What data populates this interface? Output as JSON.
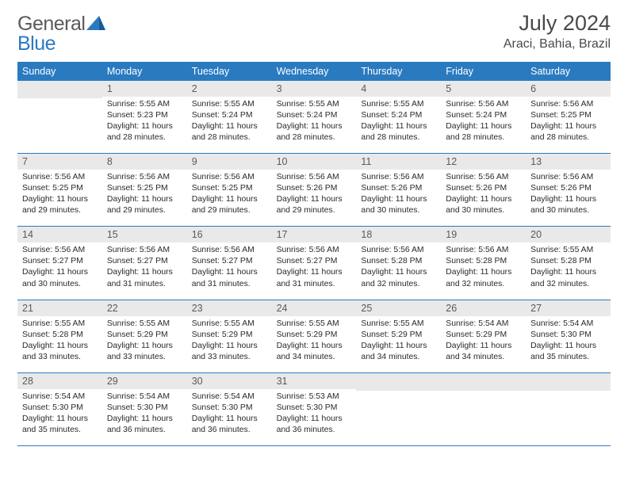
{
  "logo": {
    "word1": "General",
    "word2": "Blue"
  },
  "title": "July 2024",
  "location": "Araci, Bahia, Brazil",
  "weekdays": [
    "Sunday",
    "Monday",
    "Tuesday",
    "Wednesday",
    "Thursday",
    "Friday",
    "Saturday"
  ],
  "colors": {
    "header_bg": "#2a7ac0",
    "header_text": "#ffffff",
    "daynum_bg": "#e9e9e9",
    "daynum_text": "#5a5a5a",
    "body_text": "#262626",
    "logo_gray": "#5a5a5a",
    "logo_blue": "#2a7ac0",
    "row_divider": "#2a7ac0"
  },
  "weeks": [
    [
      {
        "n": "",
        "sr": "",
        "ss": "",
        "dl": ""
      },
      {
        "n": "1",
        "sr": "Sunrise: 5:55 AM",
        "ss": "Sunset: 5:23 PM",
        "dl": "Daylight: 11 hours and 28 minutes."
      },
      {
        "n": "2",
        "sr": "Sunrise: 5:55 AM",
        "ss": "Sunset: 5:24 PM",
        "dl": "Daylight: 11 hours and 28 minutes."
      },
      {
        "n": "3",
        "sr": "Sunrise: 5:55 AM",
        "ss": "Sunset: 5:24 PM",
        "dl": "Daylight: 11 hours and 28 minutes."
      },
      {
        "n": "4",
        "sr": "Sunrise: 5:55 AM",
        "ss": "Sunset: 5:24 PM",
        "dl": "Daylight: 11 hours and 28 minutes."
      },
      {
        "n": "5",
        "sr": "Sunrise: 5:56 AM",
        "ss": "Sunset: 5:24 PM",
        "dl": "Daylight: 11 hours and 28 minutes."
      },
      {
        "n": "6",
        "sr": "Sunrise: 5:56 AM",
        "ss": "Sunset: 5:25 PM",
        "dl": "Daylight: 11 hours and 28 minutes."
      }
    ],
    [
      {
        "n": "7",
        "sr": "Sunrise: 5:56 AM",
        "ss": "Sunset: 5:25 PM",
        "dl": "Daylight: 11 hours and 29 minutes."
      },
      {
        "n": "8",
        "sr": "Sunrise: 5:56 AM",
        "ss": "Sunset: 5:25 PM",
        "dl": "Daylight: 11 hours and 29 minutes."
      },
      {
        "n": "9",
        "sr": "Sunrise: 5:56 AM",
        "ss": "Sunset: 5:25 PM",
        "dl": "Daylight: 11 hours and 29 minutes."
      },
      {
        "n": "10",
        "sr": "Sunrise: 5:56 AM",
        "ss": "Sunset: 5:26 PM",
        "dl": "Daylight: 11 hours and 29 minutes."
      },
      {
        "n": "11",
        "sr": "Sunrise: 5:56 AM",
        "ss": "Sunset: 5:26 PM",
        "dl": "Daylight: 11 hours and 30 minutes."
      },
      {
        "n": "12",
        "sr": "Sunrise: 5:56 AM",
        "ss": "Sunset: 5:26 PM",
        "dl": "Daylight: 11 hours and 30 minutes."
      },
      {
        "n": "13",
        "sr": "Sunrise: 5:56 AM",
        "ss": "Sunset: 5:26 PM",
        "dl": "Daylight: 11 hours and 30 minutes."
      }
    ],
    [
      {
        "n": "14",
        "sr": "Sunrise: 5:56 AM",
        "ss": "Sunset: 5:27 PM",
        "dl": "Daylight: 11 hours and 30 minutes."
      },
      {
        "n": "15",
        "sr": "Sunrise: 5:56 AM",
        "ss": "Sunset: 5:27 PM",
        "dl": "Daylight: 11 hours and 31 minutes."
      },
      {
        "n": "16",
        "sr": "Sunrise: 5:56 AM",
        "ss": "Sunset: 5:27 PM",
        "dl": "Daylight: 11 hours and 31 minutes."
      },
      {
        "n": "17",
        "sr": "Sunrise: 5:56 AM",
        "ss": "Sunset: 5:27 PM",
        "dl": "Daylight: 11 hours and 31 minutes."
      },
      {
        "n": "18",
        "sr": "Sunrise: 5:56 AM",
        "ss": "Sunset: 5:28 PM",
        "dl": "Daylight: 11 hours and 32 minutes."
      },
      {
        "n": "19",
        "sr": "Sunrise: 5:56 AM",
        "ss": "Sunset: 5:28 PM",
        "dl": "Daylight: 11 hours and 32 minutes."
      },
      {
        "n": "20",
        "sr": "Sunrise: 5:55 AM",
        "ss": "Sunset: 5:28 PM",
        "dl": "Daylight: 11 hours and 32 minutes."
      }
    ],
    [
      {
        "n": "21",
        "sr": "Sunrise: 5:55 AM",
        "ss": "Sunset: 5:28 PM",
        "dl": "Daylight: 11 hours and 33 minutes."
      },
      {
        "n": "22",
        "sr": "Sunrise: 5:55 AM",
        "ss": "Sunset: 5:29 PM",
        "dl": "Daylight: 11 hours and 33 minutes."
      },
      {
        "n": "23",
        "sr": "Sunrise: 5:55 AM",
        "ss": "Sunset: 5:29 PM",
        "dl": "Daylight: 11 hours and 33 minutes."
      },
      {
        "n": "24",
        "sr": "Sunrise: 5:55 AM",
        "ss": "Sunset: 5:29 PM",
        "dl": "Daylight: 11 hours and 34 minutes."
      },
      {
        "n": "25",
        "sr": "Sunrise: 5:55 AM",
        "ss": "Sunset: 5:29 PM",
        "dl": "Daylight: 11 hours and 34 minutes."
      },
      {
        "n": "26",
        "sr": "Sunrise: 5:54 AM",
        "ss": "Sunset: 5:29 PM",
        "dl": "Daylight: 11 hours and 34 minutes."
      },
      {
        "n": "27",
        "sr": "Sunrise: 5:54 AM",
        "ss": "Sunset: 5:30 PM",
        "dl": "Daylight: 11 hours and 35 minutes."
      }
    ],
    [
      {
        "n": "28",
        "sr": "Sunrise: 5:54 AM",
        "ss": "Sunset: 5:30 PM",
        "dl": "Daylight: 11 hours and 35 minutes."
      },
      {
        "n": "29",
        "sr": "Sunrise: 5:54 AM",
        "ss": "Sunset: 5:30 PM",
        "dl": "Daylight: 11 hours and 36 minutes."
      },
      {
        "n": "30",
        "sr": "Sunrise: 5:54 AM",
        "ss": "Sunset: 5:30 PM",
        "dl": "Daylight: 11 hours and 36 minutes."
      },
      {
        "n": "31",
        "sr": "Sunrise: 5:53 AM",
        "ss": "Sunset: 5:30 PM",
        "dl": "Daylight: 11 hours and 36 minutes."
      },
      {
        "n": "",
        "sr": "",
        "ss": "",
        "dl": ""
      },
      {
        "n": "",
        "sr": "",
        "ss": "",
        "dl": ""
      },
      {
        "n": "",
        "sr": "",
        "ss": "",
        "dl": ""
      }
    ]
  ]
}
